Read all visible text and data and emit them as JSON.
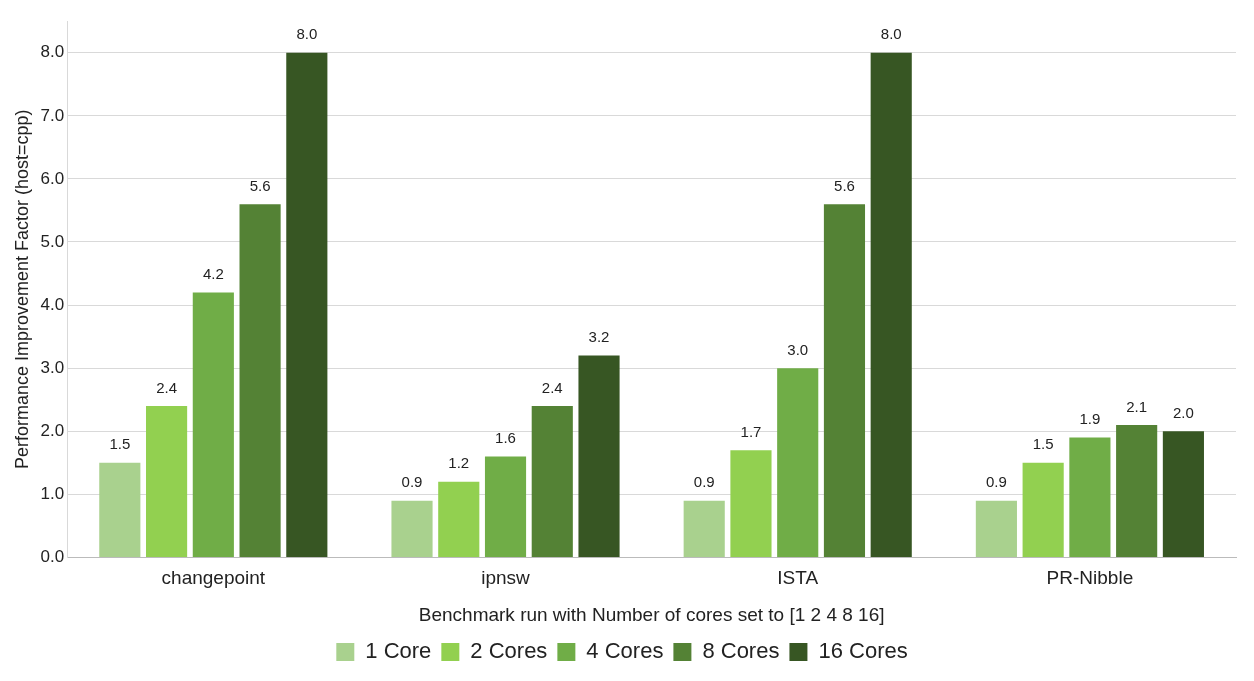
{
  "chart_data": {
    "type": "bar",
    "xlabel": "Benchmark run with Number of cores set to [1 2 4 8 16]",
    "ylabel": "Performance Improvement Factor (host=cpp)",
    "categories": [
      "changepoint",
      "ipnsw",
      "ISTA",
      "PR-Nibble"
    ],
    "ylim": [
      0,
      8.5
    ],
    "yticks": [
      {
        "value": 0,
        "label": "0.0"
      },
      {
        "value": 1,
        "label": "1.0"
      },
      {
        "value": 2,
        "label": "2.0"
      },
      {
        "value": 3,
        "label": "3.0"
      },
      {
        "value": 4,
        "label": "4.0"
      },
      {
        "value": 5,
        "label": "5.0"
      },
      {
        "value": 6,
        "label": "6.0"
      },
      {
        "value": 7,
        "label": "7.0"
      },
      {
        "value": 8,
        "label": "8.0"
      }
    ],
    "grid": "y",
    "legend": "bottom",
    "series": [
      {
        "name": "1 Core",
        "color": "#a9d18e",
        "values": [
          1.5,
          0.9,
          0.9,
          0.9
        ],
        "value_labels": [
          "1.5",
          "0.9",
          "0.9",
          "0.9"
        ]
      },
      {
        "name": "2 Cores",
        "color": "#92d050",
        "values": [
          2.4,
          1.2,
          1.7,
          1.5
        ],
        "value_labels": [
          "2.4",
          "1.2",
          "1.7",
          "1.5"
        ]
      },
      {
        "name": "4 Cores",
        "color": "#70ad47",
        "values": [
          4.2,
          1.6,
          3.0,
          1.9
        ],
        "value_labels": [
          "4.2",
          "1.6",
          "3.0",
          "1.9"
        ]
      },
      {
        "name": "8 Cores",
        "color": "#548235",
        "values": [
          5.6,
          2.4,
          5.6,
          2.1
        ],
        "value_labels": [
          "5.6",
          "2.4",
          "5.6",
          "2.1"
        ]
      },
      {
        "name": "16 Cores",
        "color": "#375623",
        "values": [
          8.0,
          3.2,
          8.0,
          2.0
        ],
        "value_labels": [
          "8.0",
          "3.2",
          "8.0",
          "2.0"
        ]
      }
    ]
  }
}
